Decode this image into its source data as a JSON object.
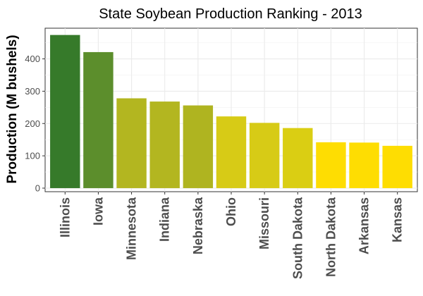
{
  "chart_data": {
    "type": "bar",
    "title": "State Soybean Production Ranking - 2013",
    "xlabel": "",
    "ylabel": "Production (M bushels)",
    "ylim": [
      -11,
      495
    ],
    "yticks": [
      0,
      100,
      200,
      300,
      400
    ],
    "grid": true,
    "legend": "none",
    "categories": [
      "Illinois",
      "Iowa",
      "Minnesota",
      "Indiana",
      "Nebraska",
      "Ohio",
      "Missouri",
      "South Dakota",
      "North Dakota",
      "Arkansas",
      "Kansas"
    ],
    "values": [
      474,
      421,
      278,
      268,
      256,
      222,
      202,
      186,
      142,
      141,
      131
    ],
    "colors": [
      "#367A2A",
      "#5C8E2C",
      "#B3B620",
      "#B3B620",
      "#AFB420",
      "#D7CB16",
      "#D7CB16",
      "#DACE13",
      "#FEDD02",
      "#FEDD02",
      "#FEDD02"
    ]
  }
}
